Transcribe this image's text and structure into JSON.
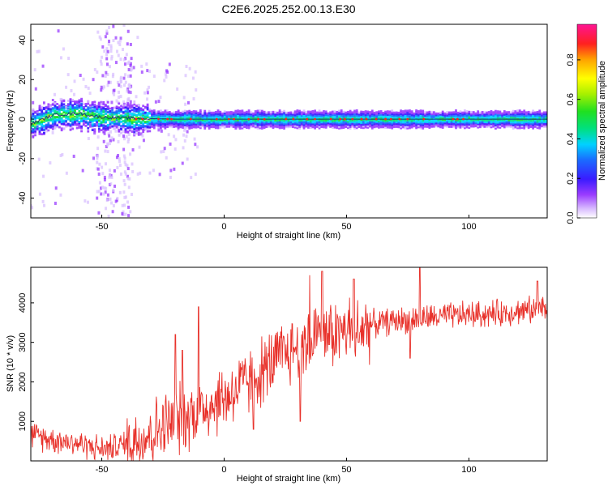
{
  "title": "C2E6.2025.252.00.13.E30",
  "chart_data": [
    {
      "type": "heatmap",
      "xlabel": "Height of straight line (km)",
      "ylabel": "Frequency (Hz)",
      "xlim": [
        -79,
        132
      ],
      "ylim": [
        -50,
        48
      ],
      "xticks": [
        -50,
        0,
        50,
        100
      ],
      "yticks": [
        -40,
        -20,
        0,
        20,
        40
      ],
      "colorbar": {
        "label": "Normalized spectral amplitude",
        "range": [
          0,
          0.98
        ],
        "ticks": [
          0.0,
          0.2,
          0.4,
          0.6,
          0.8
        ]
      },
      "band_center_hz": [
        {
          "x": -78,
          "f": -2
        },
        {
          "x": -70,
          "f": 2
        },
        {
          "x": -60,
          "f": 3
        },
        {
          "x": -50,
          "f": 1
        },
        {
          "x": -40,
          "f": 0.5
        },
        {
          "x": -20,
          "f": 0
        },
        {
          "x": 0,
          "f": 0
        },
        {
          "x": 50,
          "f": 0
        },
        {
          "x": 100,
          "f": 0
        },
        {
          "x": 132,
          "f": 0
        }
      ]
    },
    {
      "type": "line",
      "xlabel": "Height of straight line (km)",
      "ylabel": "SNR (10 * v/v)",
      "xlim": [
        -79,
        132
      ],
      "ylim": [
        0,
        4900
      ],
      "xticks": [
        -50,
        0,
        50,
        100
      ],
      "yticks": [
        1000,
        2000,
        3000,
        4000
      ],
      "series": [
        {
          "name": "SNR",
          "color": "#e8312a",
          "trend": [
            {
              "x": -79,
              "y": 650
            },
            {
              "x": -70,
              "y": 550
            },
            {
              "x": -60,
              "y": 450
            },
            {
              "x": -50,
              "y": 300
            },
            {
              "x": -45,
              "y": 350
            },
            {
              "x": -40,
              "y": 450
            },
            {
              "x": -30,
              "y": 700
            },
            {
              "x": -20,
              "y": 1000
            },
            {
              "x": -10,
              "y": 1300
            },
            {
              "x": 0,
              "y": 1600
            },
            {
              "x": 10,
              "y": 2000
            },
            {
              "x": 20,
              "y": 2500
            },
            {
              "x": 30,
              "y": 2900
            },
            {
              "x": 40,
              "y": 3150
            },
            {
              "x": 50,
              "y": 3300
            },
            {
              "x": 60,
              "y": 3450
            },
            {
              "x": 70,
              "y": 3550
            },
            {
              "x": 80,
              "y": 3600
            },
            {
              "x": 90,
              "y": 3650
            },
            {
              "x": 100,
              "y": 3700
            },
            {
              "x": 110,
              "y": 3720
            },
            {
              "x": 120,
              "y": 3800
            },
            {
              "x": 132,
              "y": 3820
            }
          ],
          "spikes": [
            {
              "x": -10.5,
              "y": 3900
            },
            {
              "x": -20,
              "y": 3200
            },
            {
              "x": -17,
              "y": 2800
            },
            {
              "x": 35,
              "y": 4700
            },
            {
              "x": 40,
              "y": 4800
            },
            {
              "x": 53,
              "y": 4600
            },
            {
              "x": 80,
              "y": 4900
            },
            {
              "x": 128,
              "y": 4550
            },
            {
              "x": 31,
              "y": 1000
            },
            {
              "x": 12,
              "y": 800
            },
            {
              "x": 55,
              "y": 3000
            },
            {
              "x": 76,
              "y": 2600
            }
          ]
        }
      ]
    }
  ]
}
